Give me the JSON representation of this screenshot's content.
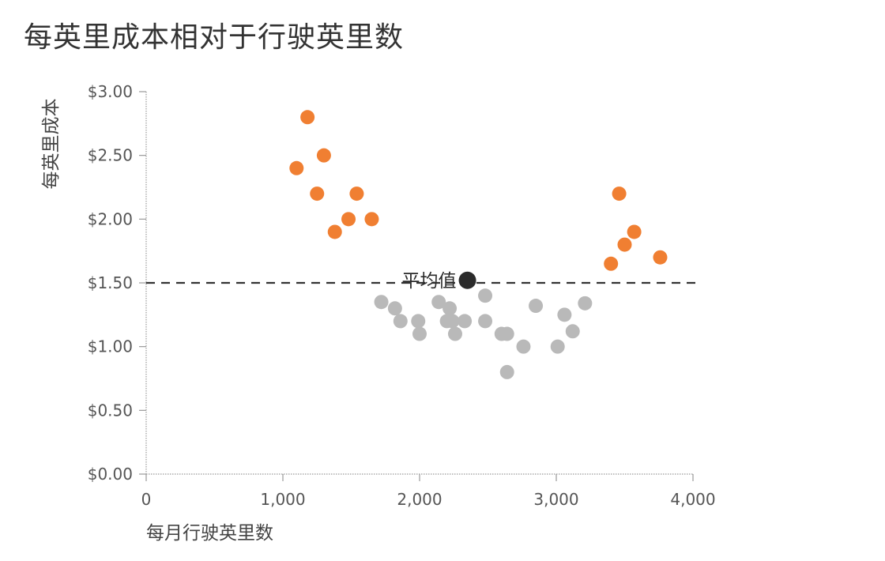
{
  "chart_data": {
    "type": "scatter",
    "title": "每英里成本相对于行驶英里数",
    "xlabel": "每月行驶英里数",
    "ylabel": "每英里成本",
    "xlim": [
      0,
      4000
    ],
    "ylim": [
      0,
      3
    ],
    "x_ticks": [
      0,
      1000,
      2000,
      3000,
      4000
    ],
    "x_tick_labels": [
      "0",
      "1,000",
      "2,000",
      "3,000",
      "4,000"
    ],
    "y_ticks": [
      0,
      0.5,
      1,
      1.5,
      2,
      2.5,
      3
    ],
    "y_tick_labels": [
      "$0.00",
      "$0.50",
      "$1.00",
      "$1.50",
      "$2.00",
      "$2.50",
      "$3.00"
    ],
    "grid": false,
    "reference_line": {
      "y": 1.5
    },
    "average": {
      "label": "平均值",
      "x": 2350,
      "y": 1.52,
      "color": "#2b2b2b"
    },
    "series": [
      {
        "color": "#f07f32",
        "points": [
          [
            1100,
            2.4
          ],
          [
            1180,
            2.8
          ],
          [
            1250,
            2.2
          ],
          [
            1300,
            2.5
          ],
          [
            1380,
            1.9
          ],
          [
            1480,
            2.0
          ],
          [
            1540,
            2.2
          ],
          [
            1650,
            2.0
          ],
          [
            3400,
            1.65
          ],
          [
            3460,
            2.2
          ],
          [
            3500,
            1.8
          ],
          [
            3570,
            1.9
          ],
          [
            3760,
            1.7
          ]
        ]
      },
      {
        "color": "#b9b9b9",
        "points": [
          [
            1720,
            1.35
          ],
          [
            1820,
            1.3
          ],
          [
            1860,
            1.2
          ],
          [
            1990,
            1.2
          ],
          [
            2000,
            1.1
          ],
          [
            2140,
            1.35
          ],
          [
            2200,
            1.2
          ],
          [
            2220,
            1.3
          ],
          [
            2240,
            1.2
          ],
          [
            2260,
            1.1
          ],
          [
            2330,
            1.2
          ],
          [
            2480,
            1.4
          ],
          [
            2480,
            1.2
          ],
          [
            2600,
            1.1
          ],
          [
            2640,
            1.1
          ],
          [
            2640,
            0.8
          ],
          [
            2760,
            1.0
          ],
          [
            2850,
            1.32
          ],
          [
            3010,
            1.0
          ],
          [
            3060,
            1.25
          ],
          [
            3120,
            1.12
          ],
          [
            3210,
            1.34
          ]
        ]
      }
    ]
  }
}
